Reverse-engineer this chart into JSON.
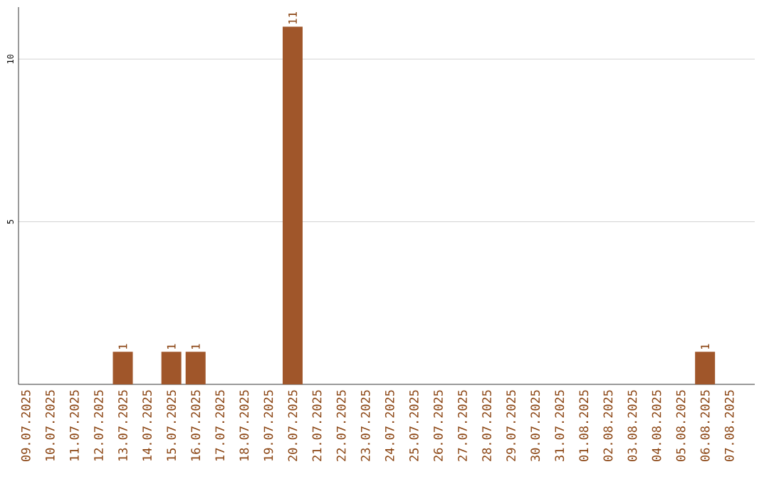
{
  "chart_data": {
    "type": "bar",
    "categories": [
      "09.07.2025",
      "10.07.2025",
      "11.07.2025",
      "12.07.2025",
      "13.07.2025",
      "14.07.2025",
      "15.07.2025",
      "16.07.2025",
      "17.07.2025",
      "18.07.2025",
      "19.07.2025",
      "20.07.2025",
      "21.07.2025",
      "22.07.2025",
      "23.07.2025",
      "24.07.2025",
      "25.07.2025",
      "26.07.2025",
      "27.07.2025",
      "28.07.2025",
      "29.07.2025",
      "30.07.2025",
      "31.07.2025",
      "01.08.2025",
      "02.08.2025",
      "03.08.2025",
      "04.08.2025",
      "05.08.2025",
      "06.08.2025",
      "07.08.2025"
    ],
    "values": [
      0,
      0,
      0,
      0,
      1,
      0,
      1,
      1,
      0,
      0,
      0,
      11,
      0,
      0,
      0,
      0,
      0,
      0,
      0,
      0,
      0,
      0,
      0,
      0,
      0,
      0,
      0,
      0,
      1,
      0
    ],
    "value_labels": [
      null,
      null,
      null,
      null,
      "1",
      null,
      "1",
      "1",
      null,
      null,
      null,
      "11",
      null,
      null,
      null,
      null,
      null,
      null,
      null,
      null,
      null,
      null,
      null,
      null,
      null,
      null,
      null,
      null,
      "1",
      null
    ],
    "color": "#a0562a",
    "ylim": [
      0,
      11.6
    ],
    "yticks": [
      5,
      10
    ],
    "grid": "y"
  }
}
